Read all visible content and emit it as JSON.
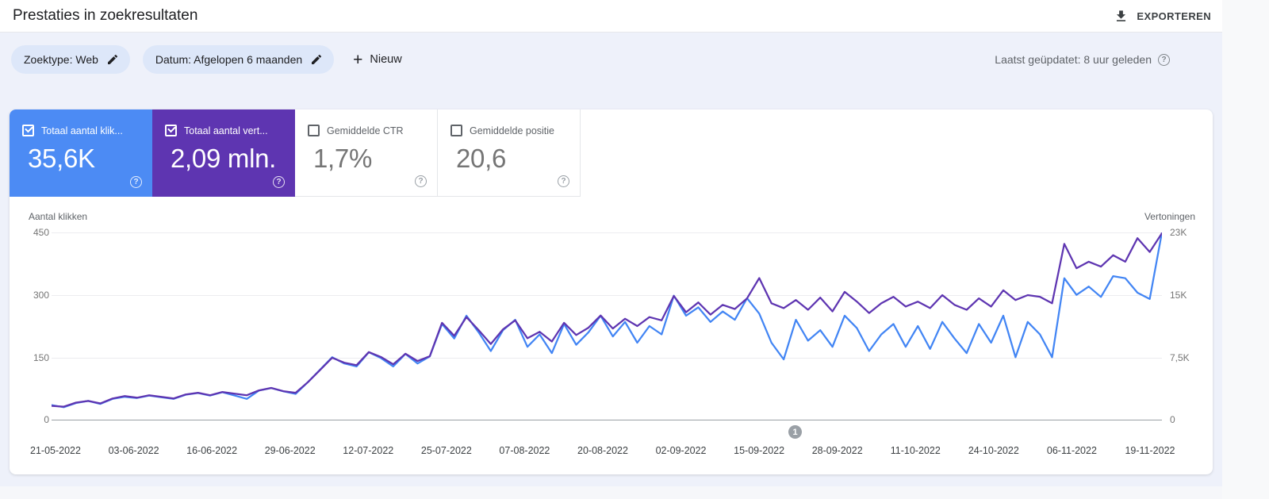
{
  "header": {
    "title": "Prestaties in zoekresultaten",
    "export_label": "EXPORTEREN"
  },
  "filter_bar": {
    "chips": [
      {
        "label": "Zoektype: Web"
      },
      {
        "label": "Datum: Afgelopen 6 maanden"
      }
    ],
    "new_label": "Nieuw",
    "last_updated": "Laatst geüpdatet: 8 uur geleden"
  },
  "metrics": {
    "cards": [
      {
        "label": "Totaal aantal klik...",
        "value": "35,6K",
        "checked": true,
        "color": "#4c8bf4"
      },
      {
        "label": "Totaal aantal vert...",
        "value": "2,09 mln.",
        "checked": true,
        "color": "#5e35b1"
      },
      {
        "label": "Gemiddelde CTR",
        "value": "1,7%",
        "checked": false,
        "color": ""
      },
      {
        "label": "Gemiddelde positie",
        "value": "20,6",
        "checked": false,
        "color": ""
      }
    ]
  },
  "chart_data": {
    "type": "line",
    "title": "Prestaties in zoekresultaten",
    "legend_position": "none",
    "grid": true,
    "left_axis": {
      "title": "Aantal klikken",
      "ticks": [
        "450",
        "300",
        "150",
        "0"
      ],
      "max": 450
    },
    "right_axis": {
      "title": "Vertoningen",
      "ticks": [
        "23K",
        "15K",
        "7,5K",
        "0"
      ],
      "max": 23000
    },
    "x_labels": [
      "21-05-2022",
      "03-06-2022",
      "16-06-2022",
      "29-06-2022",
      "12-07-2022",
      "25-07-2022",
      "07-08-2022",
      "20-08-2022",
      "02-09-2022",
      "15-09-2022",
      "28-09-2022",
      "11-10-2022",
      "24-10-2022",
      "06-11-2022",
      "19-11-2022"
    ],
    "annotation": {
      "label": "1"
    },
    "series": [
      {
        "name": "Totaal aantal klikken",
        "data_name": "clicks-line",
        "color": "#4285f4",
        "axis": "left",
        "values": [
          35,
          30,
          40,
          45,
          38,
          50,
          55,
          52,
          58,
          54,
          50,
          60,
          64,
          58,
          66,
          58,
          50,
          70,
          76,
          68,
          62,
          90,
          120,
          150,
          135,
          128,
          162,
          148,
          128,
          158,
          135,
          152,
          230,
          195,
          250,
          210,
          165,
          215,
          240,
          175,
          205,
          160,
          230,
          180,
          210,
          250,
          200,
          235,
          185,
          225,
          205,
          298,
          250,
          270,
          235,
          260,
          240,
          292,
          255,
          185,
          145,
          240,
          190,
          215,
          175,
          250,
          220,
          165,
          205,
          230,
          175,
          225,
          170,
          235,
          195,
          160,
          230,
          185,
          250,
          150,
          235,
          205,
          150,
          340,
          300,
          320,
          295,
          345,
          340,
          305,
          290,
          450
        ]
      },
      {
        "name": "Totaal aantal vertoningen",
        "data_name": "impressions-line",
        "color": "#5e35b1",
        "axis": "right",
        "values": [
          1700,
          1600,
          2100,
          2300,
          2000,
          2600,
          2900,
          2700,
          3000,
          2800,
          2600,
          3100,
          3300,
          3000,
          3400,
          3200,
          3000,
          3600,
          3900,
          3500,
          3300,
          4600,
          6100,
          7600,
          7000,
          6700,
          8300,
          7700,
          6800,
          8100,
          7200,
          7800,
          11900,
          10300,
          12600,
          11000,
          9300,
          11100,
          12200,
          10000,
          10800,
          9600,
          11900,
          10400,
          11300,
          12800,
          11200,
          12400,
          11500,
          12600,
          12200,
          15200,
          13200,
          14400,
          12900,
          14100,
          13600,
          14900,
          17400,
          14300,
          13700,
          14700,
          13500,
          15000,
          13300,
          15700,
          14500,
          13100,
          14300,
          15100,
          13900,
          14500,
          13700,
          15300,
          14100,
          13500,
          14900,
          13900,
          15900,
          14700,
          15300,
          15100,
          14300,
          21600,
          18600,
          19400,
          18800,
          20200,
          19400,
          22300,
          20600,
          22900
        ]
      }
    ]
  }
}
